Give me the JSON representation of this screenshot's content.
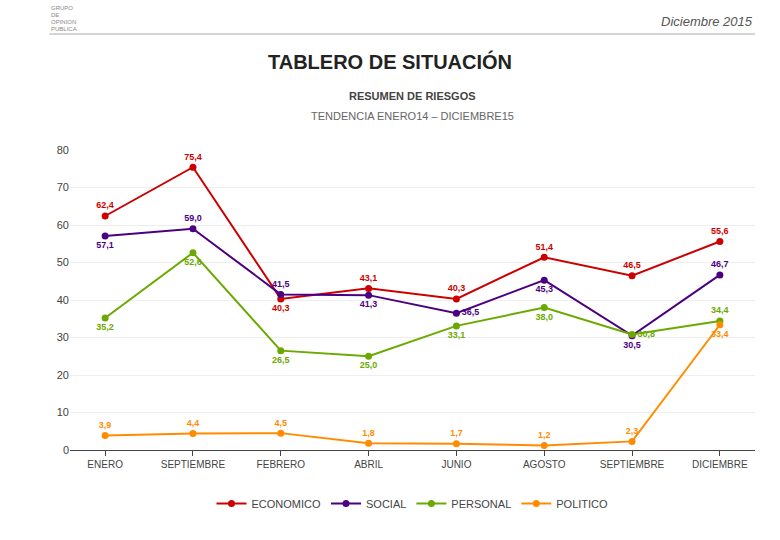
{
  "chart_data": {
    "type": "line",
    "title": "TABLERO DE SITUACIÓN",
    "subtitle": "RESUMEN DE RIESGOS",
    "annotations": [
      "GRUPO",
      "DE",
      "OPINION",
      "PUBLICA",
      "Diciembre 2015",
      "TENDENCIA ENERO14 – DICIEMBRE15"
    ],
    "categories": [
      "ENERO",
      "SEPTIEMBRE",
      "FEBRERO",
      "ABRIL",
      "JUNIO",
      "AGOSTO",
      "SEPTIEMBRE",
      "DICIEMBRE"
    ],
    "series": [
      {
        "name": "ECONOMICO",
        "color": "#cc0000",
        "values": [
          62.4,
          75.4,
          40.3,
          43.1,
          40.3,
          51.4,
          46.5,
          55.6
        ],
        "value_labels": [
          "62,4",
          "75,4",
          "40,3",
          "43,1",
          "40,3",
          "51,4",
          "46,5",
          "55,6"
        ]
      },
      {
        "name": "SOCIAL",
        "color": "#4b0082",
        "values": [
          57.1,
          59.0,
          41.5,
          41.3,
          36.5,
          45.3,
          30.5,
          46.7
        ],
        "value_labels": [
          "57,1",
          "59,0",
          "41,5",
          "41,3",
          "36,5",
          "45,3",
          "30,5",
          "46,7"
        ]
      },
      {
        "name": "PERSONAL",
        "color": "#6aaa00",
        "values": [
          35.2,
          52.6,
          26.5,
          25.0,
          33.1,
          38.0,
          30.8,
          34.4
        ],
        "value_labels": [
          "35,2",
          "52,6",
          "26,5",
          "25,0",
          "33,1",
          "38,0",
          "30,8",
          "34,4"
        ]
      },
      {
        "name": "POLITICO",
        "color": "#ff8c00",
        "values": [
          3.9,
          4.4,
          4.5,
          1.8,
          1.7,
          1.2,
          2.3,
          33.4
        ],
        "value_labels": [
          "3,9",
          "4,4",
          "4,5",
          "1,8",
          "1,7",
          "1,2",
          "2,3",
          "33,4"
        ]
      }
    ],
    "ylim": [
      0,
      80
    ],
    "yticks": [
      0,
      10,
      20,
      30,
      40,
      50,
      60,
      70,
      80
    ],
    "grid": true,
    "legend": "bottom",
    "data_labels": true,
    "marker": "circle"
  }
}
